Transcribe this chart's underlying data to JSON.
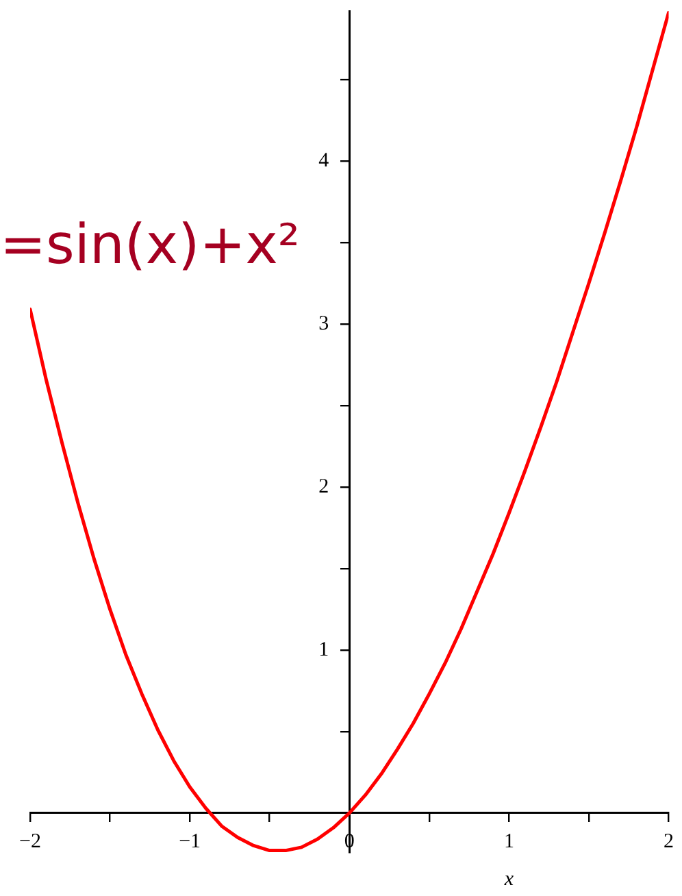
{
  "chart_data": {
    "type": "line",
    "title": "=sin(x)+x²",
    "xlabel": "x",
    "color": "#ff0000",
    "marker": "none",
    "line_style": "solid",
    "legend": false,
    "grid": false,
    "x": [
      -2,
      -1.9,
      -1.8,
      -1.7,
      -1.6,
      -1.5,
      -1.4,
      -1.3,
      -1.2,
      -1.1,
      -1,
      -0.9,
      -0.8,
      -0.7,
      -0.6,
      -0.5,
      -0.4,
      -0.3,
      -0.2,
      -0.1,
      0,
      0.1,
      0.2,
      0.3,
      0.4,
      0.5,
      0.6,
      0.7,
      0.8,
      0.9,
      1,
      1.1,
      1.2,
      1.3,
      1.4,
      1.5,
      1.6,
      1.7,
      1.8,
      1.9,
      2
    ],
    "values": [
      3.09,
      2.66,
      2.27,
      1.9,
      1.56,
      1.25,
      0.97,
      0.73,
      0.51,
      0.32,
      0.16,
      0.03,
      -0.08,
      -0.15,
      -0.2,
      -0.23,
      -0.23,
      -0.21,
      -0.16,
      -0.09,
      0,
      0.11,
      0.24,
      0.39,
      0.55,
      0.73,
      0.92,
      1.13,
      1.36,
      1.59,
      1.84,
      2.1,
      2.37,
      2.65,
      2.95,
      3.25,
      3.56,
      3.88,
      4.21,
      4.56,
      4.91
    ],
    "xlim": [
      -2,
      2
    ],
    "ylim": [
      -0.24,
      4.92
    ],
    "xticks": [
      {
        "value": -2,
        "label": "−2"
      },
      {
        "value": -1.5,
        "label": null
      },
      {
        "value": -1,
        "label": "−1"
      },
      {
        "value": -0.5,
        "label": null
      },
      0,
      {
        "value": 0.5,
        "label": null
      },
      1,
      {
        "value": 1.5,
        "label": null
      },
      2
    ],
    "yticks": [
      {
        "value": 0.5,
        "label": null
      },
      1,
      {
        "value": 1.5,
        "label": null
      },
      2,
      {
        "value": 2.5,
        "label": null
      },
      3,
      {
        "value": 3.5,
        "label": null
      },
      4,
      {
        "value": 4.5,
        "label": null
      }
    ]
  }
}
